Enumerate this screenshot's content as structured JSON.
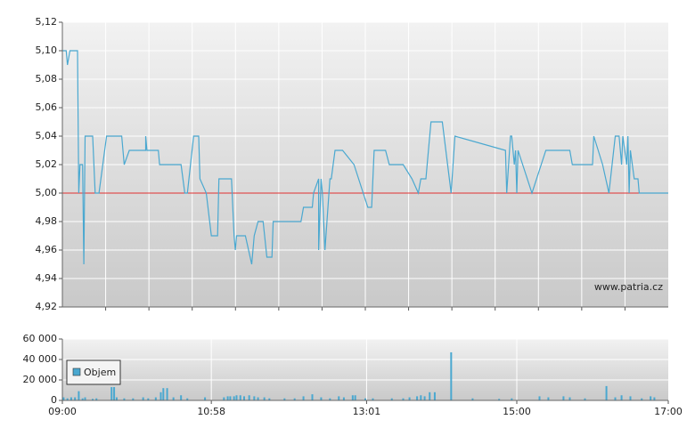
{
  "chart_data": [
    {
      "type": "line",
      "annotation": "www.patria.cz",
      "color": "#4aa8d0",
      "grid": true,
      "reference_line": {
        "value": 5,
        "color": "#e03030"
      },
      "xlim": [
        0,
        480
      ],
      "ylim": [
        4.92,
        5.12
      ],
      "yticks": [
        {
          "value": 4.92,
          "label": "4,92"
        },
        {
          "value": 4.94,
          "label": "4,94"
        },
        {
          "value": 4.96,
          "label": "4,96"
        },
        {
          "value": 4.98,
          "label": "4,98"
        },
        {
          "value": 5,
          "label": "5,00"
        },
        {
          "value": 5.02,
          "label": "5,02"
        },
        {
          "value": 5.04,
          "label": "5,04"
        },
        {
          "value": 5.06,
          "label": "5,06"
        },
        {
          "value": 5.08,
          "label": "5,08"
        },
        {
          "value": 5.1,
          "label": "5,10"
        },
        {
          "value": 5.12,
          "label": "5,12"
        }
      ],
      "x": [
        0,
        3,
        4,
        6,
        12,
        13,
        14,
        16,
        17,
        18,
        24,
        26,
        29,
        35,
        47,
        49,
        53,
        66,
        66,
        67,
        76,
        77,
        94,
        97,
        99,
        104,
        108,
        109,
        114,
        118,
        123,
        124,
        134,
        136,
        137,
        138,
        145,
        150,
        152,
        155,
        159,
        162,
        166,
        167,
        189,
        191,
        198,
        199,
        203,
        203,
        205,
        206,
        208,
        212,
        213,
        216,
        222,
        231,
        242,
        245,
        247,
        256,
        259,
        270,
        277,
        282,
        284,
        288,
        289,
        292,
        301,
        308,
        311,
        351,
        352,
        355,
        356,
        358,
        359,
        360,
        361,
        372,
        383,
        402,
        404,
        420,
        421,
        428,
        433,
        438,
        441,
        443,
        444,
        447,
        448,
        449,
        450,
        453,
        456,
        457,
        480
      ],
      "values": [
        5.1,
        5.1,
        5.09,
        5.1,
        5.1,
        5,
        5.02,
        5.02,
        4.95,
        5.04,
        5.04,
        5,
        5,
        5.04,
        5.04,
        5.02,
        5.03,
        5.03,
        5.04,
        5.03,
        5.03,
        5.02,
        5.02,
        5,
        5,
        5.04,
        5.04,
        5.01,
        5,
        4.97,
        4.97,
        5.01,
        5.01,
        4.97,
        4.96,
        4.97,
        4.97,
        4.95,
        4.97,
        4.98,
        4.98,
        4.955,
        4.955,
        4.98,
        4.98,
        4.99,
        4.99,
        5,
        5.01,
        4.96,
        5.01,
        5,
        4.96,
        5.01,
        5.01,
        5.03,
        5.03,
        5.02,
        4.99,
        4.99,
        5.03,
        5.03,
        5.02,
        5.02,
        5.01,
        5,
        5.01,
        5.01,
        5.02,
        5.05,
        5.05,
        5,
        5.04,
        5.03,
        5,
        5.04,
        5.04,
        5.02,
        5.03,
        5,
        5.03,
        5,
        5.03,
        5.03,
        5.02,
        5.02,
        5.04,
        5.02,
        5,
        5.04,
        5.04,
        5.02,
        5.04,
        5.02,
        5.04,
        5,
        5.03,
        5.01,
        5.01,
        5,
        5
      ]
    },
    {
      "type": "bar",
      "grid": true,
      "legend": "upper-left",
      "xlim": [
        0,
        480
      ],
      "xticks": [
        {
          "value": 0,
          "label": "09:00"
        },
        {
          "value": 118,
          "label": "10:58"
        },
        {
          "value": 241,
          "label": "13:01"
        },
        {
          "value": 360,
          "label": "15:00"
        },
        {
          "value": 480,
          "label": "17:00"
        }
      ],
      "ylim": [
        0,
        60000
      ],
      "yticks": [
        0,
        {
          "value": 20000,
          "label": "20 000"
        },
        {
          "value": 40000,
          "label": "40 000"
        },
        {
          "value": 60000,
          "label": "60 000"
        }
      ],
      "x": [
        1,
        4,
        7,
        10,
        13,
        16,
        18,
        24,
        27,
        39,
        41,
        43,
        49,
        56,
        64,
        68,
        74,
        78,
        80,
        83,
        88,
        94,
        99,
        113,
        128,
        131,
        133,
        136,
        138,
        141,
        144,
        148,
        152,
        155,
        160,
        164,
        176,
        184,
        191,
        198,
        205,
        212,
        219,
        223,
        230,
        232,
        240,
        246,
        261,
        270,
        275,
        281,
        284,
        287,
        291,
        295,
        308,
        325,
        346,
        356,
        378,
        385,
        397,
        402,
        414,
        431,
        438,
        443,
        450,
        459,
        466,
        469
      ],
      "series": [
        {
          "name": "Objem",
          "color": "#4aa8d0",
          "values": [
            3000,
            2000,
            3000,
            3000,
            9000,
            2000,
            3000,
            1500,
            2000,
            13000,
            13000,
            3000,
            2000,
            2000,
            3000,
            2000,
            3000,
            8000,
            12000,
            12000,
            3000,
            5000,
            2000,
            3000,
            3000,
            4000,
            4000,
            4000,
            5000,
            5000,
            4000,
            5000,
            4000,
            3000,
            3000,
            2000,
            2000,
            2000,
            4000,
            6000,
            3000,
            2000,
            4000,
            3000,
            5000,
            5000,
            2000,
            2000,
            2000,
            2000,
            3000,
            4000,
            5000,
            4000,
            8000,
            8000,
            47000,
            2000,
            1500,
            2000,
            4000,
            3000,
            4000,
            3000,
            2000,
            14000,
            3000,
            5000,
            4000,
            2000,
            4000,
            3000
          ]
        }
      ]
    }
  ]
}
